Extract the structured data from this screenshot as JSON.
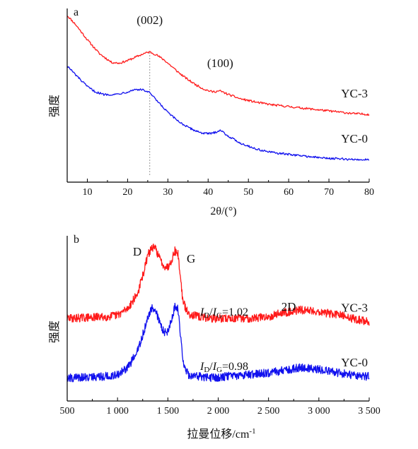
{
  "chart_data": [
    {
      "panel": "a",
      "type": "line",
      "xlabel": "2θ/(°)",
      "ylabel": "强度",
      "xlim": [
        5,
        80
      ],
      "x_ticks": [
        "10",
        "20",
        "30",
        "40",
        "50",
        "60",
        "70",
        "80"
      ],
      "x_tick_values": [
        10,
        20,
        30,
        40,
        50,
        60,
        70,
        80
      ],
      "reference_line_x": 25.5,
      "annotations": [
        {
          "text": "(002)",
          "x": 25.5
        },
        {
          "text": "(100)",
          "x": 43
        }
      ],
      "series": [
        {
          "name": "YC-3",
          "color": "#ff1a1a",
          "x": [
            5,
            7,
            10,
            13,
            16,
            18,
            20,
            22,
            24,
            25.5,
            27,
            29,
            31,
            33,
            35,
            37,
            39,
            41,
            43,
            45,
            48,
            52,
            56,
            60,
            64,
            68,
            72,
            76,
            80
          ],
          "y": [
            0.96,
            0.91,
            0.82,
            0.74,
            0.69,
            0.685,
            0.7,
            0.72,
            0.74,
            0.75,
            0.735,
            0.705,
            0.665,
            0.625,
            0.59,
            0.56,
            0.535,
            0.52,
            0.525,
            0.505,
            0.48,
            0.46,
            0.445,
            0.435,
            0.425,
            0.415,
            0.405,
            0.395,
            0.39
          ]
        },
        {
          "name": "YC-0",
          "color": "#1010ee",
          "x": [
            5,
            7,
            10,
            12,
            14,
            17,
            20,
            22,
            24,
            25.5,
            27,
            29,
            31,
            33,
            35,
            37,
            39,
            41,
            43,
            45,
            48,
            52,
            56,
            60,
            64,
            68,
            72,
            76,
            80
          ],
          "y": [
            0.67,
            0.62,
            0.55,
            0.52,
            0.505,
            0.505,
            0.52,
            0.535,
            0.53,
            0.515,
            0.475,
            0.425,
            0.38,
            0.345,
            0.315,
            0.295,
            0.28,
            0.28,
            0.3,
            0.265,
            0.225,
            0.19,
            0.17,
            0.16,
            0.15,
            0.14,
            0.135,
            0.13,
            0.13
          ]
        }
      ]
    },
    {
      "panel": "b",
      "type": "line",
      "xlabel": "拉曼位移/cm-1",
      "ylabel": "强度",
      "xlim": [
        500,
        3500
      ],
      "x_ticks": [
        "500",
        "1 000",
        "1 500",
        "2 000",
        "2 500",
        "3 000",
        "3 500"
      ],
      "x_tick_values": [
        500,
        1000,
        1500,
        2000,
        2500,
        3000,
        3500
      ],
      "annotations": [
        {
          "text": "D",
          "x": 1350
        },
        {
          "text": "G",
          "x": 1590
        },
        {
          "text": "2D",
          "x": 2700
        }
      ],
      "ratios": [
        {
          "series": "YC-3",
          "label": "ID/IG=1.02",
          "value": 1.02
        },
        {
          "series": "YC-0",
          "label": "ID/IG=0.98",
          "value": 0.98
        }
      ],
      "series": [
        {
          "name": "YC-3",
          "color": "#ff1a1a",
          "x": [
            500,
            700,
            900,
            1000,
            1100,
            1200,
            1260,
            1300,
            1340,
            1380,
            1420,
            1460,
            1500,
            1540,
            1570,
            1600,
            1620,
            1650,
            1700,
            1800,
            1950,
            2100,
            2300,
            2500,
            2600,
            2700,
            2800,
            2900,
            3000,
            3200,
            3400,
            3500
          ],
          "y": [
            0.5,
            0.505,
            0.51,
            0.52,
            0.56,
            0.65,
            0.78,
            0.88,
            0.93,
            0.92,
            0.86,
            0.82,
            0.81,
            0.86,
            0.91,
            0.89,
            0.78,
            0.6,
            0.53,
            0.51,
            0.5,
            0.5,
            0.5,
            0.51,
            0.53,
            0.54,
            0.55,
            0.55,
            0.54,
            0.52,
            0.49,
            0.48
          ]
        },
        {
          "name": "YC-0",
          "color": "#1010ee",
          "x": [
            500,
            700,
            900,
            1000,
            1100,
            1200,
            1260,
            1300,
            1340,
            1380,
            1420,
            1460,
            1500,
            1540,
            1570,
            1600,
            1620,
            1650,
            1700,
            1800,
            1950,
            2100,
            2300,
            2500,
            2600,
            2700,
            2800,
            2900,
            3000,
            3200,
            3400,
            3500
          ],
          "y": [
            0.14,
            0.145,
            0.15,
            0.16,
            0.2,
            0.3,
            0.42,
            0.5,
            0.56,
            0.54,
            0.47,
            0.42,
            0.42,
            0.5,
            0.57,
            0.56,
            0.44,
            0.24,
            0.16,
            0.15,
            0.14,
            0.15,
            0.16,
            0.17,
            0.18,
            0.19,
            0.2,
            0.2,
            0.19,
            0.17,
            0.15,
            0.15
          ]
        }
      ]
    }
  ]
}
